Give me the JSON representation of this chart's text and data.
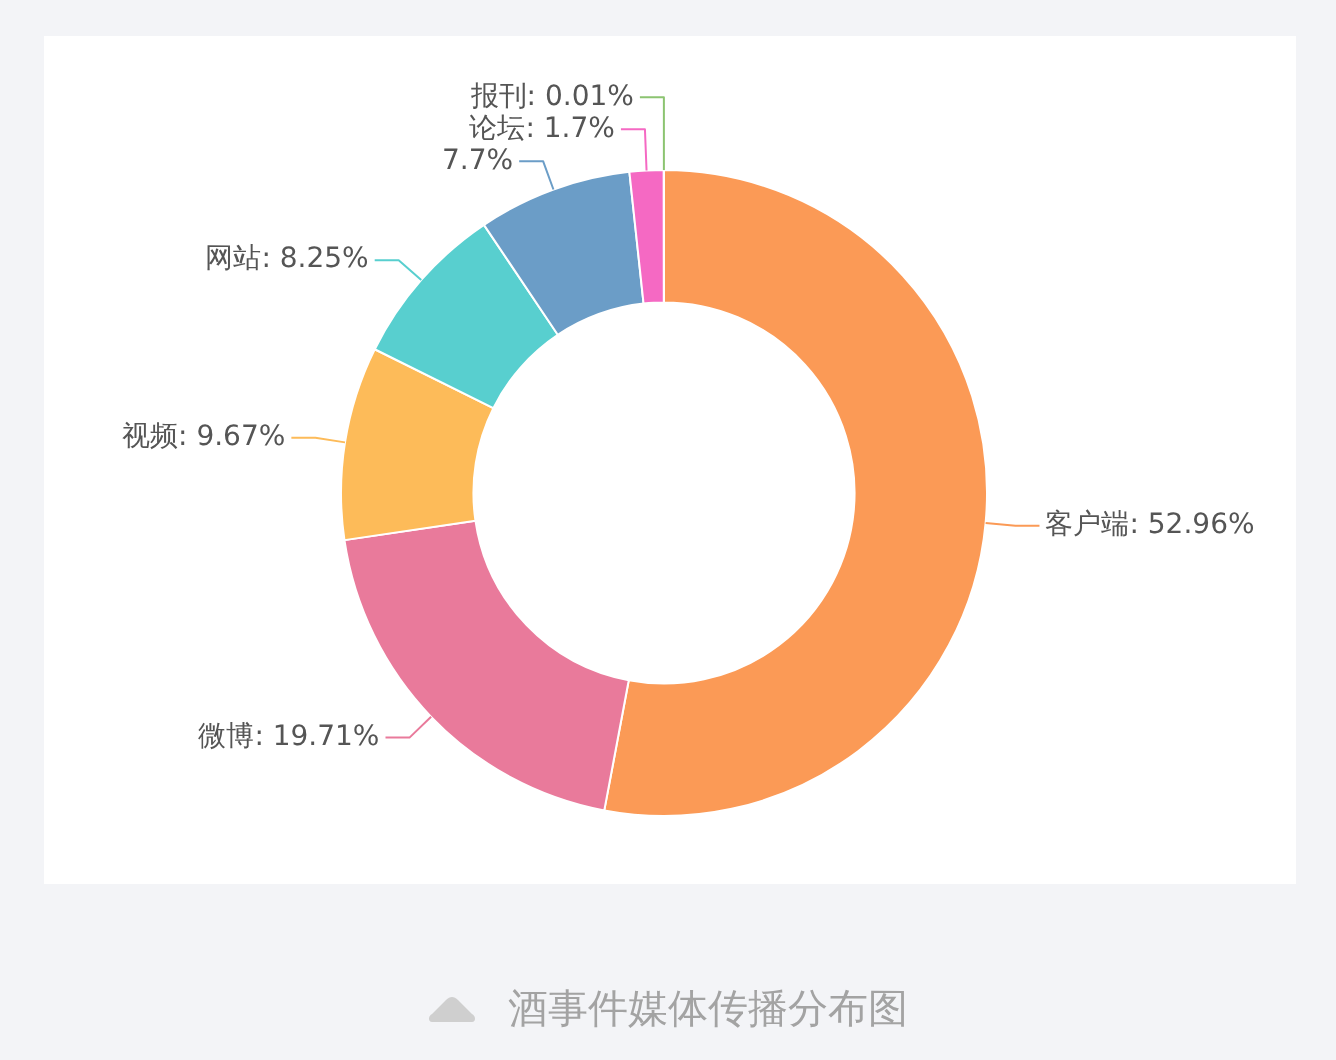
{
  "chart_data": {
    "type": "donut",
    "categories": [
      "客户端",
      "微博",
      "视频",
      "网站",
      null,
      "论坛",
      "报刊"
    ],
    "values": [
      52.96,
      19.71,
      9.67,
      8.25,
      7.7,
      1.7,
      0.01
    ],
    "colors": [
      "#fb9a56",
      "#e97a9b",
      "#fdbb59",
      "#58cfcf",
      "#6b9dc7",
      "#f569c3",
      "#8cc471"
    ],
    "value_labels": [
      "52.96%",
      "19.71%",
      "9.67%",
      "8.25%",
      "7.7%",
      "1.7%",
      "0.01%"
    ],
    "annotations": [
      "酒事件媒体传播分布图"
    ]
  }
}
